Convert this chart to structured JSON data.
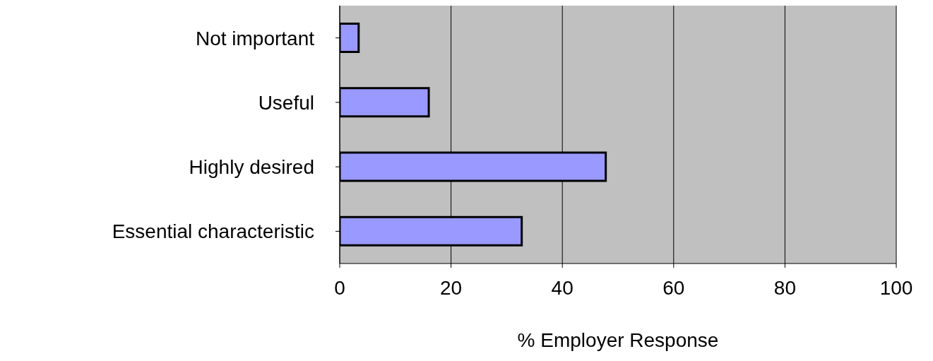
{
  "chart_data": {
    "type": "bar",
    "orientation": "horizontal",
    "xlabel": "% Employer Response",
    "categories": [
      "Not important",
      "Useful",
      "Highly desired",
      "Essential characteristic"
    ],
    "values": [
      3.4,
      16,
      47.8,
      32.7
    ],
    "color": "#9999ff",
    "xlim": [
      0,
      100
    ],
    "xticks": [
      0,
      20,
      40,
      60,
      80,
      100
    ],
    "grid": "x",
    "legend": false
  }
}
